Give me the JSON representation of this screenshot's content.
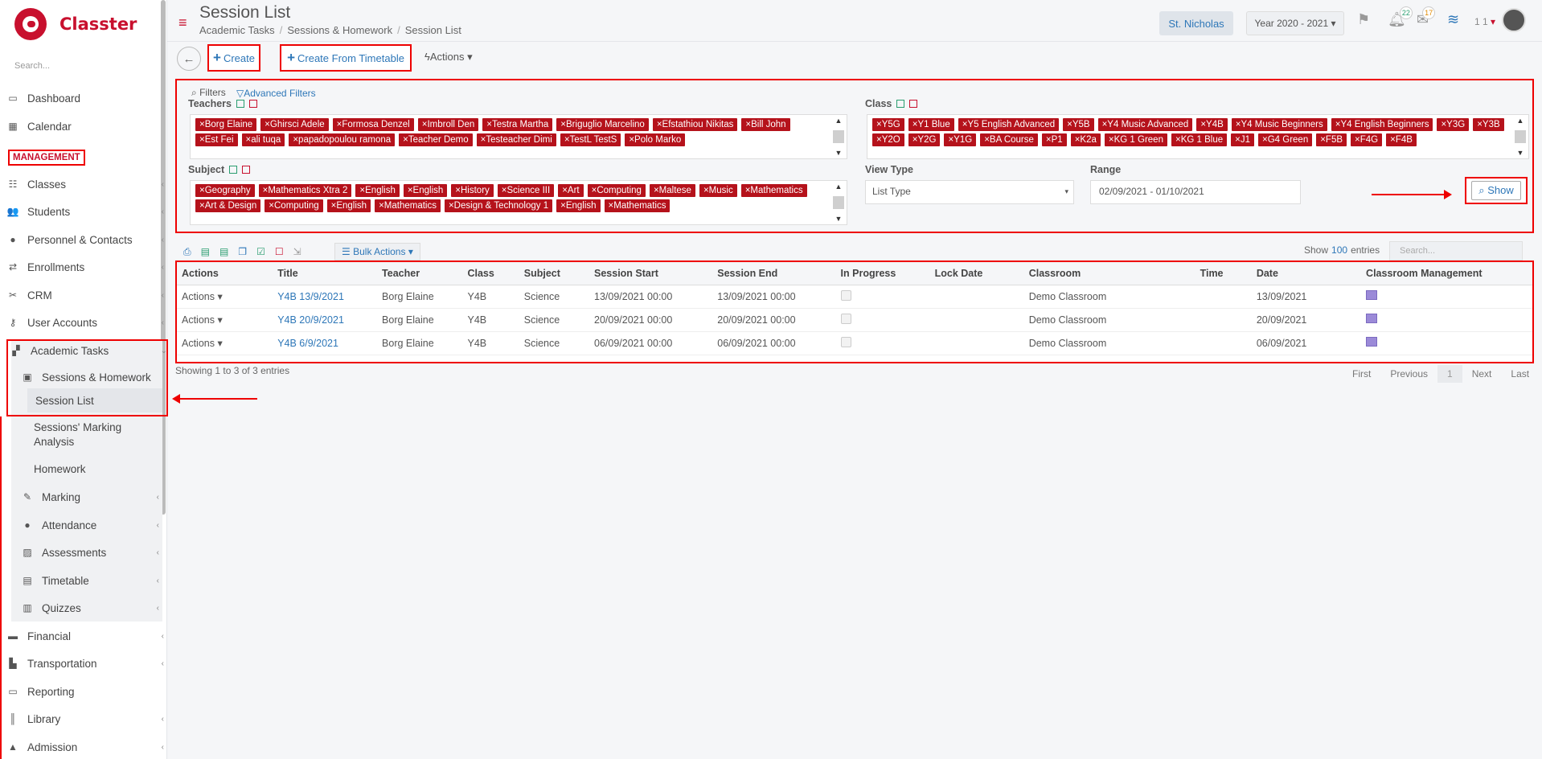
{
  "app": {
    "name": "Classter",
    "search_placeholder": "Search..."
  },
  "sidebar": {
    "items": [
      {
        "label": "Dashboard",
        "icon": "laptop-icon"
      },
      {
        "label": "Calendar",
        "icon": "calendar-icon"
      },
      {
        "label": "Classes",
        "icon": "grid-icon"
      },
      {
        "label": "Students",
        "icon": "users-icon"
      },
      {
        "label": "Personnel & Contacts",
        "icon": "user-icon"
      },
      {
        "label": "Enrollments",
        "icon": "exchange-icon"
      },
      {
        "label": "CRM",
        "icon": "crm-icon"
      },
      {
        "label": "User Accounts",
        "icon": "key-icon"
      },
      {
        "label": "Academic Tasks",
        "icon": "tasks-icon"
      },
      {
        "label": "Sessions & Homework",
        "icon": "sessions-icon"
      },
      {
        "label": "Session List",
        "icon": ""
      },
      {
        "label": "Sessions' Marking",
        "icon": ""
      },
      {
        "label": "Analysis",
        "icon": ""
      },
      {
        "label": "Homework",
        "icon": ""
      },
      {
        "label": "Marking",
        "icon": "edit-icon"
      },
      {
        "label": "Attendance",
        "icon": "attendance-icon"
      },
      {
        "label": "Assessments",
        "icon": "assessment-icon"
      },
      {
        "label": "Timetable",
        "icon": "timetable-icon"
      },
      {
        "label": "Quizzes",
        "icon": "quiz-icon"
      },
      {
        "label": "Financial",
        "icon": "money-icon"
      },
      {
        "label": "Transportation",
        "icon": "bus-icon"
      },
      {
        "label": "Reporting",
        "icon": "print-icon"
      },
      {
        "label": "Library",
        "icon": "library-icon"
      },
      {
        "label": "Admission",
        "icon": "admission-icon"
      }
    ],
    "section_label": "MANAGEMENT"
  },
  "header": {
    "title": "Session List",
    "breadcrumb": [
      "Academic Tasks",
      "Sessions & Homework",
      "Session List"
    ],
    "school": "St. Nicholas",
    "year": "Year 2020 - 2021",
    "notif_count": "22",
    "mail_count": "17",
    "user": "1 1"
  },
  "toolbar": {
    "create": "Create",
    "create_timetable": "Create From Timetable",
    "actions": "Actions"
  },
  "filters": {
    "title": "Filters",
    "advanced": "Advanced Filters",
    "teachers_label": "Teachers",
    "class_label": "Class",
    "subject_label": "Subject",
    "view_type_label": "View Type",
    "view_type_value": "List Type",
    "range_label": "Range",
    "range_value": "02/09/2021 - 01/10/2021",
    "show": "Show",
    "teachers": [
      "Borg Elaine",
      "Ghirsci Adele",
      "Formosa Denzel",
      "Imbroll Den",
      "Testra Martha",
      "Briguglio Marcelino",
      "Efstathiou Nikitas",
      "Bill John",
      "Est Fei",
      "ali tuqa",
      "papadopoulou ramona",
      "Teacher Demo",
      "Testeacher Dimi",
      "TestL TestS",
      "Polo Marko"
    ],
    "classes": [
      "Y5G",
      "Y1 Blue",
      "Y5 English Advanced",
      "Y5B",
      "Y4 Music Advanced",
      "Y4B",
      "Y4 Music Beginners",
      "Y4 English Beginners",
      "Y3G",
      "Y3B",
      "Y2O",
      "Y2G",
      "Y1G",
      "BA Course",
      "P1",
      "K2a",
      "KG 1 Green",
      "KG 1 Blue",
      "J1",
      "G4 Green",
      "F5B",
      "F4G",
      "F4B"
    ],
    "subjects": [
      "Geography",
      "Mathematics Xtra 2",
      "English",
      "English",
      "History",
      "Science III",
      "Art",
      "Computing",
      "Maltese",
      "Music",
      "Mathematics",
      "Art & Design",
      "Computing",
      "English",
      "Mathematics",
      "Design & Technology 1",
      "English",
      "Mathematics"
    ]
  },
  "table_tools": {
    "bulk": "Bulk Actions",
    "show": "Show",
    "entries_count": "100",
    "entries": "entries",
    "search_placeholder": "Search..."
  },
  "table": {
    "headers": [
      "Actions",
      "Title",
      "Teacher",
      "Class",
      "Subject",
      "Session Start",
      "Session End",
      "In Progress",
      "Lock Date",
      "Classroom",
      "Time",
      "Date",
      "Classroom Management"
    ],
    "rows": [
      {
        "actions": "Actions",
        "title": "Y4B 13/9/2021",
        "teacher": "Borg Elaine",
        "class": "Y4B",
        "subject": "Science",
        "start": "13/09/2021 00:00",
        "end": "13/09/2021 00:00",
        "classroom": "Demo Classroom",
        "date": "13/09/2021"
      },
      {
        "actions": "Actions",
        "title": "Y4B 20/9/2021",
        "teacher": "Borg Elaine",
        "class": "Y4B",
        "subject": "Science",
        "start": "20/09/2021 00:00",
        "end": "20/09/2021 00:00",
        "classroom": "Demo Classroom",
        "date": "20/09/2021"
      },
      {
        "actions": "Actions",
        "title": "Y4B 6/9/2021",
        "teacher": "Borg Elaine",
        "class": "Y4B",
        "subject": "Science",
        "start": "06/09/2021 00:00",
        "end": "06/09/2021 00:00",
        "classroom": "Demo Classroom",
        "date": "06/09/2021"
      }
    ],
    "info": "Showing 1 to 3 of 3 entries"
  },
  "pager": {
    "first": "First",
    "previous": "Previous",
    "page": "1",
    "next": "Next",
    "last": "Last"
  }
}
